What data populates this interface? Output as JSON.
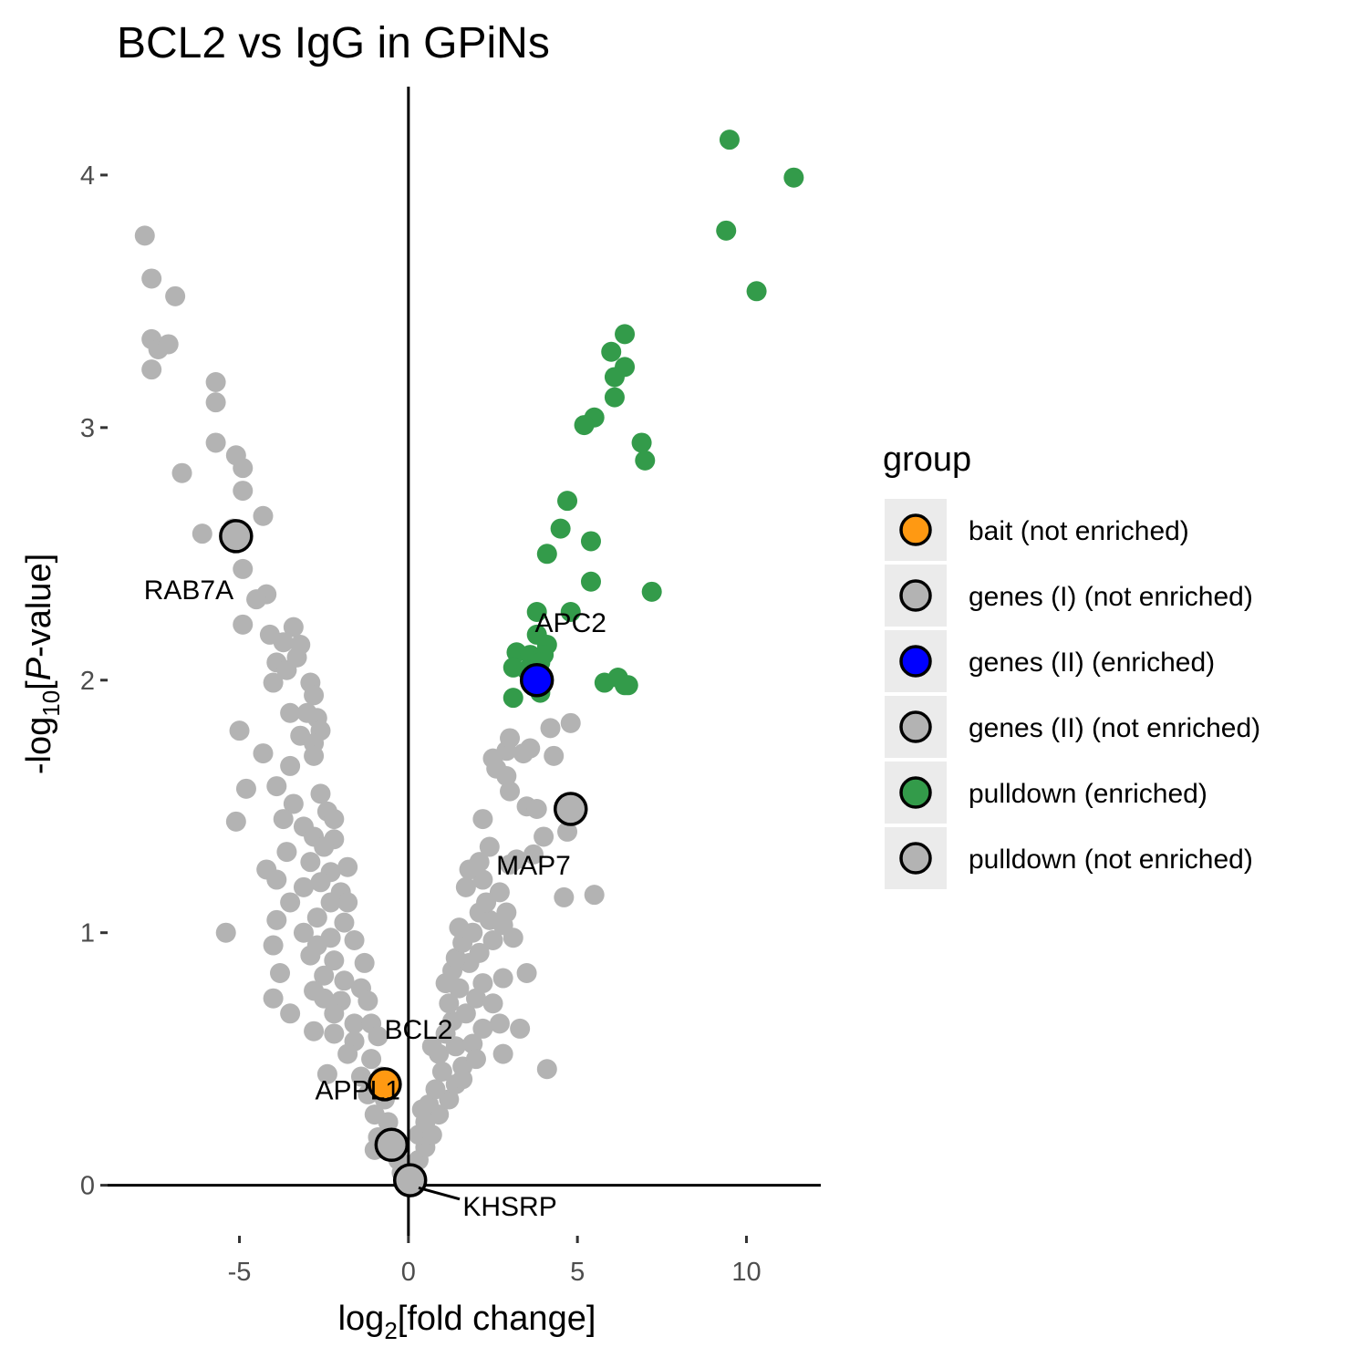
{
  "chart_data": {
    "type": "scatter",
    "title": "BCL2 vs IgG in GPiNs",
    "xlabel": {
      "pre": "log",
      "sub": "2",
      "post": "[fold change]"
    },
    "ylabel": {
      "pre": "-log",
      "sub": "10",
      "mid": "[",
      "ital": "P",
      "post": "-value]"
    },
    "xlim": [
      -8.9,
      12.2
    ],
    "ylim": [
      -0.2,
      4.35
    ],
    "x_ticks": [
      -5,
      0,
      5,
      10
    ],
    "x_tick_labels": [
      "-5",
      "0",
      "5",
      "10"
    ],
    "y_ticks": [
      0,
      1,
      2,
      3,
      4
    ],
    "y_tick_labels": [
      "0",
      "1",
      "2",
      "3",
      "4"
    ],
    "reference_lines": {
      "x": 0,
      "y": 0
    },
    "grid": false,
    "legend": {
      "title": "group",
      "placement": "right",
      "entries": [
        {
          "label": "bait (not enriched)",
          "color": "#ff9912"
        },
        {
          "label": "genes (I) (not enriched)",
          "color": "#b3b3b3"
        },
        {
          "label": "genes (II) (enriched)",
          "color": "#0000ff"
        },
        {
          "label": "genes (II) (not enriched)",
          "color": "#b3b3b3"
        },
        {
          "label": "pulldown (enriched)",
          "color": "#339b4a"
        },
        {
          "label": "pulldown (not enriched)",
          "color": "#b3b3b3"
        }
      ]
    },
    "series": [
      {
        "name": "pulldown (enriched)",
        "color": "#339b4a",
        "points": [
          [
            9.5,
            4.14
          ],
          [
            11.4,
            3.99
          ],
          [
            9.4,
            3.78
          ],
          [
            10.3,
            3.54
          ],
          [
            6.4,
            3.37
          ],
          [
            6.0,
            3.3
          ],
          [
            6.4,
            3.24
          ],
          [
            6.1,
            3.2
          ],
          [
            6.1,
            3.12
          ],
          [
            5.5,
            3.04
          ],
          [
            5.2,
            3.01
          ],
          [
            6.9,
            2.94
          ],
          [
            7.0,
            2.87
          ],
          [
            4.7,
            2.71
          ],
          [
            4.5,
            2.6
          ],
          [
            5.4,
            2.55
          ],
          [
            4.1,
            2.5
          ],
          [
            5.4,
            2.39
          ],
          [
            7.2,
            2.35
          ],
          [
            3.8,
            2.27
          ],
          [
            4.8,
            2.27
          ],
          [
            3.8,
            2.18
          ],
          [
            4.1,
            2.14
          ],
          [
            3.2,
            2.11
          ],
          [
            3.6,
            2.1
          ],
          [
            4.0,
            2.1
          ],
          [
            3.9,
            2.07
          ],
          [
            3.1,
            2.05
          ],
          [
            3.5,
            2.04
          ],
          [
            5.8,
            1.99
          ],
          [
            6.2,
            2.01
          ],
          [
            6.4,
            1.98
          ],
          [
            6.5,
            1.98
          ],
          [
            3.1,
            1.93
          ],
          [
            3.9,
            1.95
          ]
        ]
      },
      {
        "name": "pulldown (not enriched)",
        "color": "#b3b3b3",
        "points": [
          [
            -7.8,
            3.76
          ],
          [
            -7.6,
            3.59
          ],
          [
            -6.9,
            3.52
          ],
          [
            -7.6,
            3.35
          ],
          [
            -7.4,
            3.31
          ],
          [
            -7.1,
            3.33
          ],
          [
            -7.6,
            3.23
          ],
          [
            -5.7,
            3.18
          ],
          [
            -5.7,
            3.1
          ],
          [
            -5.7,
            2.94
          ],
          [
            -5.1,
            2.89
          ],
          [
            -4.9,
            2.84
          ],
          [
            -6.7,
            2.82
          ],
          [
            -4.9,
            2.75
          ],
          [
            -4.3,
            2.65
          ],
          [
            -6.1,
            2.58
          ],
          [
            -5.2,
            2.6
          ],
          [
            -4.9,
            2.44
          ],
          [
            -4.2,
            2.34
          ],
          [
            -4.5,
            2.32
          ],
          [
            -4.9,
            2.22
          ],
          [
            -4.1,
            2.18
          ],
          [
            -3.4,
            2.21
          ],
          [
            -3.7,
            2.15
          ],
          [
            -3.2,
            2.14
          ],
          [
            -3.3,
            2.09
          ],
          [
            -3.9,
            2.07
          ],
          [
            -3.6,
            2.04
          ],
          [
            -4.0,
            1.99
          ],
          [
            -2.9,
            1.99
          ],
          [
            -2.8,
            1.94
          ],
          [
            -3.5,
            1.87
          ],
          [
            -3.0,
            1.87
          ],
          [
            -2.7,
            1.85
          ],
          [
            -5.0,
            1.8
          ],
          [
            -2.6,
            1.8
          ],
          [
            -3.2,
            1.78
          ],
          [
            -2.8,
            1.75
          ],
          [
            -4.3,
            1.71
          ],
          [
            -2.8,
            1.7
          ],
          [
            -3.5,
            1.66
          ],
          [
            -4.8,
            1.57
          ],
          [
            -3.9,
            1.58
          ],
          [
            -2.6,
            1.55
          ],
          [
            -3.4,
            1.51
          ],
          [
            -2.4,
            1.48
          ],
          [
            -2.2,
            1.45
          ],
          [
            -3.7,
            1.45
          ],
          [
            -3.1,
            1.42
          ],
          [
            -5.1,
            1.44
          ],
          [
            -2.8,
            1.38
          ],
          [
            -2.2,
            1.37
          ],
          [
            -2.5,
            1.34
          ],
          [
            -3.6,
            1.32
          ],
          [
            -2.9,
            1.28
          ],
          [
            -4.2,
            1.25
          ],
          [
            -1.8,
            1.26
          ],
          [
            -2.3,
            1.24
          ],
          [
            -3.9,
            1.21
          ],
          [
            -2.6,
            1.2
          ],
          [
            -3.1,
            1.18
          ],
          [
            -2.0,
            1.16
          ],
          [
            -3.5,
            1.12
          ],
          [
            -1.8,
            1.12
          ],
          [
            -2.3,
            1.12
          ],
          [
            -3.9,
            1.05
          ],
          [
            -2.7,
            1.06
          ],
          [
            -1.9,
            1.04
          ],
          [
            -5.4,
            1.0
          ],
          [
            -3.1,
            1.0
          ],
          [
            -2.3,
            0.98
          ],
          [
            -4.0,
            0.95
          ],
          [
            -2.7,
            0.95
          ],
          [
            -1.6,
            0.97
          ],
          [
            -2.9,
            0.91
          ],
          [
            -2.2,
            0.89
          ],
          [
            -1.3,
            0.88
          ],
          [
            -3.8,
            0.84
          ],
          [
            -2.5,
            0.83
          ],
          [
            -1.9,
            0.81
          ],
          [
            -2.8,
            0.77
          ],
          [
            -1.4,
            0.78
          ],
          [
            -2.5,
            0.74
          ],
          [
            -4.0,
            0.74
          ],
          [
            -2.0,
            0.73
          ],
          [
            -1.2,
            0.73
          ],
          [
            -3.5,
            0.68
          ],
          [
            -2.2,
            0.68
          ],
          [
            -1.6,
            0.64
          ],
          [
            -1.1,
            0.64
          ],
          [
            -2.8,
            0.61
          ],
          [
            -2.2,
            0.6
          ],
          [
            -1.6,
            0.57
          ],
          [
            -0.9,
            0.59
          ],
          [
            -1.8,
            0.52
          ],
          [
            -1.1,
            0.5
          ],
          [
            -2.4,
            0.44
          ],
          [
            -1.4,
            0.43
          ],
          [
            -0.8,
            0.43
          ],
          [
            -1.2,
            0.36
          ],
          [
            -0.7,
            0.34
          ],
          [
            -1.0,
            0.28
          ],
          [
            -0.6,
            0.25
          ],
          [
            -0.9,
            0.19
          ],
          [
            -0.5,
            0.19
          ],
          [
            -1.0,
            0.14
          ],
          [
            -0.3,
            0.1
          ],
          [
            -0.2,
            0.05
          ],
          [
            0.15,
            0.05
          ],
          [
            0.3,
            0.1
          ],
          [
            0.5,
            0.15
          ],
          [
            0.3,
            0.2
          ],
          [
            0.7,
            0.2
          ],
          [
            0.5,
            0.25
          ],
          [
            0.9,
            0.28
          ],
          [
            0.6,
            0.32
          ],
          [
            1.2,
            0.34
          ],
          [
            0.8,
            0.38
          ],
          [
            1.4,
            0.4
          ],
          [
            1.0,
            0.45
          ],
          [
            1.6,
            0.47
          ],
          [
            0.9,
            0.52
          ],
          [
            1.4,
            0.55
          ],
          [
            1.9,
            0.56
          ],
          [
            1.1,
            0.6
          ],
          [
            2.2,
            0.62
          ],
          [
            1.3,
            0.65
          ],
          [
            1.7,
            0.68
          ],
          [
            2.7,
            0.64
          ],
          [
            1.2,
            0.72
          ],
          [
            2.0,
            0.74
          ],
          [
            1.5,
            0.78
          ],
          [
            2.2,
            0.8
          ],
          [
            1.3,
            0.85
          ],
          [
            1.8,
            0.88
          ],
          [
            2.8,
            0.82
          ],
          [
            3.5,
            0.84
          ],
          [
            1.4,
            0.9
          ],
          [
            2.1,
            0.92
          ],
          [
            1.6,
            0.96
          ],
          [
            2.5,
            0.97
          ],
          [
            1.9,
            1.0
          ],
          [
            3.1,
            0.98
          ],
          [
            1.5,
            1.02
          ],
          [
            2.4,
            1.05
          ],
          [
            2.8,
            1.03
          ],
          [
            2.1,
            1.08
          ],
          [
            2.9,
            1.08
          ],
          [
            2.3,
            1.12
          ],
          [
            2.7,
            1.16
          ],
          [
            1.7,
            1.18
          ],
          [
            2.2,
            1.21
          ],
          [
            1.8,
            1.25
          ],
          [
            2.1,
            1.28
          ],
          [
            3.0,
            1.27
          ],
          [
            2.4,
            1.34
          ],
          [
            3.2,
            1.29
          ],
          [
            2.2,
            1.45
          ],
          [
            4.7,
            1.4
          ],
          [
            4.0,
            1.38
          ],
          [
            3.7,
            1.31
          ],
          [
            4.6,
            1.14
          ],
          [
            5.5,
            1.15
          ],
          [
            3.5,
            1.5
          ],
          [
            3.8,
            1.49
          ],
          [
            3.0,
            1.56
          ],
          [
            2.9,
            1.62
          ],
          [
            2.6,
            1.65
          ],
          [
            2.5,
            1.69
          ],
          [
            3.4,
            1.71
          ],
          [
            3.6,
            1.73
          ],
          [
            2.9,
            1.72
          ],
          [
            4.3,
            1.7
          ],
          [
            3.0,
            1.77
          ],
          [
            4.2,
            1.81
          ],
          [
            4.8,
            1.83
          ],
          [
            4.1,
            0.46
          ],
          [
            2.5,
            0.72
          ],
          [
            3.3,
            0.62
          ],
          [
            2.8,
            0.52
          ],
          [
            2.0,
            0.5
          ],
          [
            1.1,
            0.8
          ],
          [
            1.6,
            0.42
          ],
          [
            0.7,
            0.55
          ],
          [
            0.4,
            0.3
          ]
        ]
      },
      {
        "name": "genes (I) (not enriched)",
        "color": "#b3b3b3",
        "highlight": true,
        "points": [
          [
            -5.1,
            2.57
          ],
          [
            -0.5,
            0.16
          ]
        ],
        "labels": [
          "RAB7A",
          "APPL1"
        ]
      },
      {
        "name": "genes (II) (not enriched)",
        "color": "#b3b3b3",
        "highlight": true,
        "points": [
          [
            4.8,
            1.49
          ],
          [
            0.05,
            0.02
          ]
        ],
        "labels": [
          "MAP7",
          "KHSRP"
        ]
      },
      {
        "name": "genes (II) (enriched)",
        "color": "#0000ff",
        "highlight": true,
        "points": [
          [
            3.8,
            2.0
          ]
        ],
        "labels": [
          "APC2"
        ]
      },
      {
        "name": "bait (not enriched)",
        "color": "#ff9912",
        "highlight": true,
        "points": [
          [
            -0.7,
            0.4
          ]
        ],
        "labels": [
          "BCL2"
        ]
      }
    ],
    "annotations": [
      {
        "text": "RAB7A",
        "x": -6.5,
        "y": 2.32
      },
      {
        "text": "APC2",
        "x": 4.8,
        "y": 2.19
      },
      {
        "text": "MAP7",
        "x": 3.7,
        "y": 1.23
      },
      {
        "text": "BCL2",
        "x": 0.3,
        "y": 0.58
      },
      {
        "text": "APPL1",
        "x": -1.5,
        "y": 0.34
      },
      {
        "text": "KHSRP",
        "x": 3.0,
        "y": -0.12,
        "arrow_to": [
          0.3,
          -0.01
        ]
      }
    ]
  }
}
